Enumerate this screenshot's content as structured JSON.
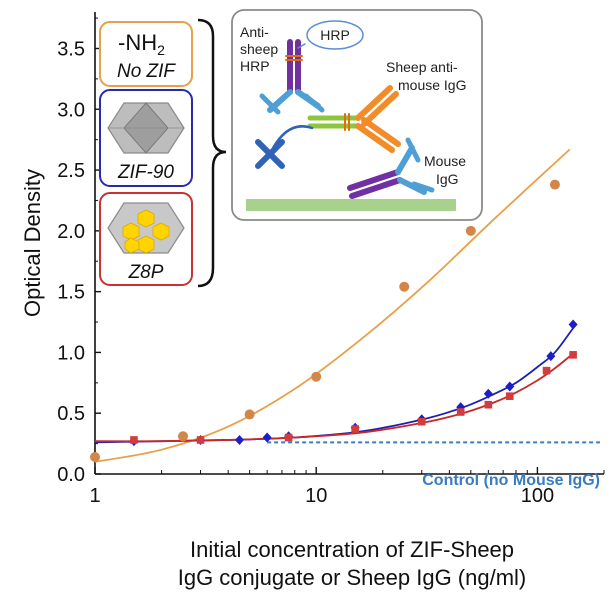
{
  "chart_data": {
    "type": "scatter",
    "xscale": "log",
    "xlim": [
      1,
      200
    ],
    "ylim": [
      0.0,
      3.8
    ],
    "xlabel_line1": "Initial concentration of ZIF-Sheep",
    "xlabel_line2": "IgG conjugate or Sheep IgG (ng/ml)",
    "ylabel": "Optical Density",
    "xticks": [
      1,
      10,
      100
    ],
    "xtick_labels": [
      "1",
      "10",
      "100"
    ],
    "yticks": [
      0.0,
      0.5,
      1.0,
      1.5,
      2.0,
      2.5,
      3.0,
      3.5
    ],
    "ytick_labels": [
      "0.0",
      "0.5",
      "1.0",
      "1.5",
      "2.0",
      "2.5",
      "3.0",
      "3.5"
    ],
    "control_level": 0.26,
    "control_label": "Control (no Mouse IgG)",
    "series": [
      {
        "key": "nh2",
        "color": "#E8A04A",
        "marker_color": "#D2864A",
        "marker": "circle",
        "x": [
          1,
          2.5,
          5,
          10,
          25,
          50,
          120
        ],
        "y": [
          0.14,
          0.31,
          0.49,
          0.8,
          1.54,
          2.0,
          2.38
        ],
        "fit_x": [
          1,
          2,
          4,
          8,
          16,
          32,
          64,
          140
        ],
        "fit_y": [
          0.1,
          0.2,
          0.39,
          0.7,
          1.11,
          1.58,
          2.1,
          2.67
        ]
      },
      {
        "key": "zif90",
        "color": "#2020B0",
        "marker_color": "#1E1EC8",
        "marker": "diamond",
        "x": [
          1.5,
          3,
          4.5,
          6,
          7.5,
          15,
          30,
          45,
          60,
          75,
          115,
          145
        ],
        "y": [
          0.27,
          0.28,
          0.28,
          0.3,
          0.31,
          0.38,
          0.45,
          0.55,
          0.66,
          0.72,
          0.97,
          1.23
        ],
        "fit_x": [
          1,
          2,
          4,
          8,
          16,
          32,
          48,
          64,
          80,
          100,
          120,
          145
        ],
        "fit_y": [
          0.26,
          0.27,
          0.28,
          0.3,
          0.35,
          0.46,
          0.56,
          0.66,
          0.75,
          0.88,
          1.0,
          1.2
        ]
      },
      {
        "key": "z8p",
        "color": "#C82828",
        "marker_color": "#D23C3C",
        "marker": "square",
        "x": [
          1.5,
          3,
          7.5,
          15,
          30,
          45,
          60,
          75,
          110,
          145
        ],
        "y": [
          0.28,
          0.28,
          0.3,
          0.37,
          0.43,
          0.51,
          0.57,
          0.64,
          0.85,
          0.98
        ],
        "fit_x": [
          1,
          2,
          4,
          8,
          16,
          32,
          48,
          64,
          80,
          100,
          120,
          145
        ],
        "fit_y": [
          0.27,
          0.27,
          0.28,
          0.3,
          0.34,
          0.43,
          0.51,
          0.59,
          0.67,
          0.77,
          0.87,
          0.99
        ]
      }
    ]
  },
  "legend": {
    "nh2_line1": "-NH",
    "nh2_sub": "2",
    "nh2_line2": "No ZIF",
    "zif90": "ZIF-90",
    "z8p": "Z8P",
    "equals": "="
  },
  "inset": {
    "anti_sheep": "Anti-",
    "anti_sheep2": "sheep",
    "anti_sheep3": "HRP",
    "hrp": "HRP",
    "sheep_anti": "Sheep anti-",
    "sheep_anti2": "mouse IgG",
    "mouse": "Mouse",
    "mouse2": "IgG"
  }
}
